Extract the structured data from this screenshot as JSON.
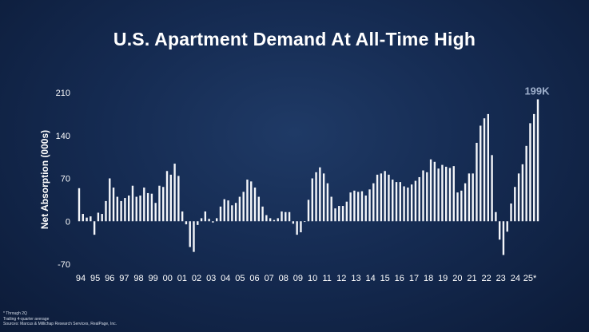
{
  "chart_data": {
    "type": "bar",
    "title": "U.S. Apartment Demand At All-Time High",
    "ylabel": "Net Absorption (000s)",
    "ylim": [
      -70,
      210
    ],
    "yticks": [
      "210",
      "140",
      "70",
      "0",
      "-70"
    ],
    "grid": false,
    "year_labels": [
      "94",
      "95",
      "96",
      "97",
      "98",
      "99",
      "00",
      "01",
      "02",
      "03",
      "04",
      "05",
      "06",
      "07",
      "08",
      "09",
      "10",
      "11",
      "12",
      "13",
      "14",
      "15",
      "16",
      "17",
      "18",
      "19",
      "20",
      "21",
      "22",
      "23",
      "24",
      "25*"
    ],
    "values": [
      54,
      12,
      6,
      8,
      -22,
      14,
      12,
      33,
      70,
      55,
      40,
      33,
      38,
      42,
      58,
      40,
      42,
      55,
      46,
      45,
      30,
      58,
      56,
      82,
      76,
      94,
      74,
      16,
      -5,
      -42,
      -50,
      -6,
      5,
      16,
      4,
      -2,
      5,
      24,
      36,
      34,
      26,
      30,
      40,
      48,
      68,
      65,
      55,
      40,
      24,
      10,
      5,
      2,
      5,
      16,
      15,
      15,
      -4,
      -22,
      -18,
      0,
      35,
      70,
      80,
      88,
      78,
      62,
      40,
      21,
      25,
      25,
      32,
      47,
      50,
      48,
      49,
      42,
      52,
      62,
      76,
      78,
      82,
      76,
      68,
      64,
      64,
      57,
      55,
      60,
      66,
      72,
      83,
      80,
      101,
      97,
      86,
      92,
      89,
      87,
      90,
      47,
      50,
      62,
      78,
      78,
      128,
      156,
      168,
      175,
      108,
      15,
      -30,
      -55,
      -17,
      29,
      56,
      78,
      93,
      123,
      160,
      175,
      199
    ],
    "annotations": [
      {
        "text": "199K"
      }
    ]
  },
  "footnotes": [
    "* Through 2Q",
    "Trailing 4-quarter average",
    "Sources: Marcus & Millichap Research Services, RealPage, Inc."
  ],
  "colors": {
    "bar": "#f4f6fa",
    "peak_label": "#9fb0cc",
    "text": "#ffffff"
  }
}
